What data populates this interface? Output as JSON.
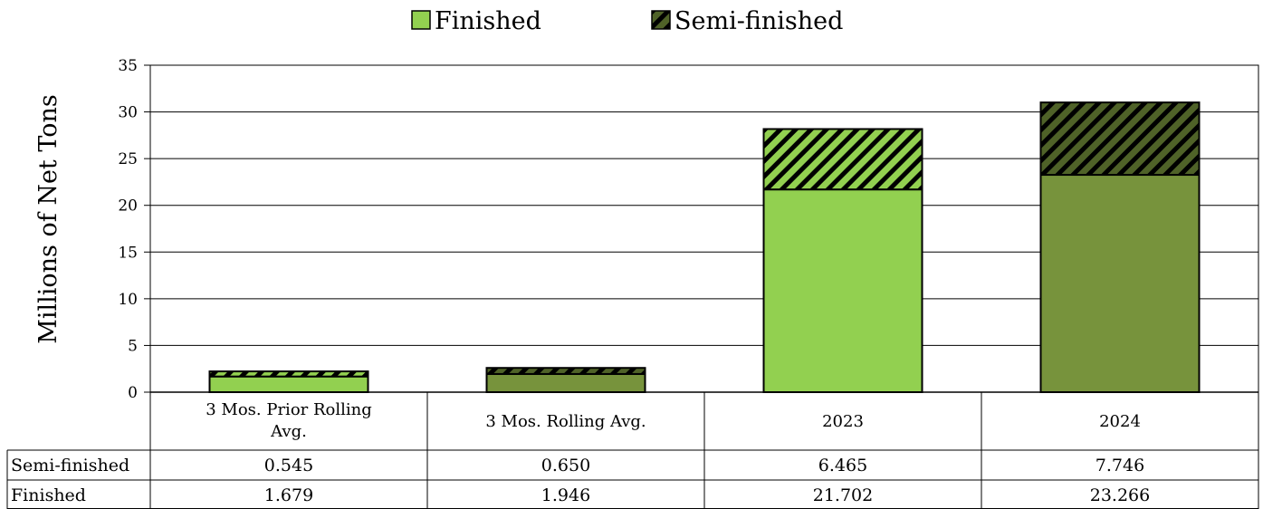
{
  "chart_data": {
    "type": "bar",
    "stacked": true,
    "categories": [
      "3 Mos. Prior Rolling Avg.",
      "3 Mos. Rolling Avg.",
      "2023",
      "2024"
    ],
    "series": [
      {
        "name": "Finished",
        "values": [
          1.679,
          1.946,
          21.702,
          23.266
        ],
        "display": [
          "1.679",
          "1.946",
          "21.702",
          "23.266"
        ]
      },
      {
        "name": "Semi-finished",
        "values": [
          0.545,
          0.65,
          6.465,
          7.746
        ],
        "display": [
          "0.545",
          "0.650",
          "6.465",
          "7.746"
        ]
      }
    ],
    "ylabel": "Millions of Net Tons",
    "ylim": [
      0,
      35
    ],
    "yticks": [
      0,
      5,
      10,
      15,
      20,
      25,
      30,
      35
    ],
    "grid": true,
    "legend": "top-center",
    "data_table": true,
    "colors": {
      "light_green": "#92D050",
      "dark_green": "#77933C",
      "light_hatch_bg": "#92D050",
      "dark_hatch_bg": "#4F6228",
      "hatch_stripe": "#000000",
      "gridline": "#000000",
      "outline": "#000000"
    },
    "category_colors": [
      "light",
      "dark",
      "light",
      "dark"
    ]
  }
}
